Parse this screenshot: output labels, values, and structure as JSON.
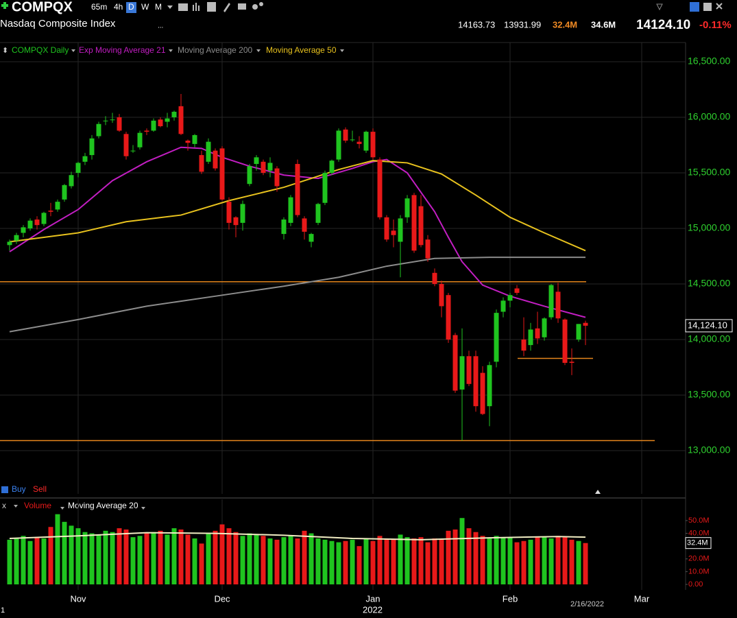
{
  "header": {
    "symbol": "COMPQX",
    "intervals": [
      "65m",
      "4h",
      "D",
      "W",
      "M"
    ],
    "name": "Nasdaq Composite Index",
    "ellipsis": "...",
    "high": "14163.73",
    "low": "13931.99",
    "volume": "32.4M",
    "avg_volume": "34.6M",
    "last": "14124.10",
    "change": "-0.11%"
  },
  "signals": [
    "Buy",
    "Sell"
  ],
  "year_label": "2022",
  "cursor_date": "2/16/2022",
  "corner_label": "1",
  "chart_data": [
    {
      "type": "candlestick",
      "candles": {
        "name": "COMPQX Daily",
        "up_color": "#1fc41f",
        "down_color": "#e81919",
        "open": [
          14850,
          14890,
          14960,
          15000,
          15080,
          15040,
          15160,
          15170,
          15260,
          15380,
          15500,
          15600,
          15660,
          15830,
          15970,
          15980,
          16000,
          15850,
          15700,
          15730,
          15880,
          15880,
          15980,
          15960,
          16000,
          16100,
          15790,
          15760,
          15660,
          15600,
          15700,
          15720,
          15240,
          15100,
          15050,
          15400,
          15580,
          15600,
          15520,
          15540,
          14950,
          15050,
          15580,
          15090,
          14880,
          15050,
          15230,
          15500,
          15620,
          15890,
          15800,
          15780,
          15700,
          15870,
          15620,
          15100,
          14980,
          14880,
          15100,
          15300,
          15200,
          14900,
          14600,
          14500,
          14400,
          14040,
          13550,
          13850,
          13850,
          13700,
          13400,
          13800,
          14250,
          14350,
          14460,
          14000,
          13950,
          14100,
          14020,
          14200,
          14430,
          14180,
          13800,
          14000,
          14150
        ],
        "high": [
          14900,
          14960,
          15030,
          15090,
          15110,
          15150,
          15230,
          15260,
          15400,
          15510,
          15600,
          15680,
          15840,
          15960,
          16010,
          16040,
          16030,
          15870,
          15750,
          15880,
          15900,
          15990,
          16000,
          16040,
          16060,
          16210,
          15800,
          15850,
          15700,
          15810,
          15720,
          15740,
          15280,
          15110,
          15250,
          15580,
          15660,
          15620,
          15640,
          15560,
          15100,
          15300,
          15620,
          15110,
          14960,
          15230,
          15520,
          15620,
          15900,
          15910,
          15880,
          15830,
          15880,
          15900,
          15640,
          15120,
          15080,
          15120,
          15300,
          15320,
          15300,
          14940,
          14640,
          14530,
          14420,
          14060,
          14100,
          13900,
          13900,
          13760,
          13800,
          14270,
          14380,
          14420,
          14490,
          14200,
          14150,
          14250,
          14200,
          14500,
          14510,
          14190,
          13920,
          14140,
          14170
        ],
        "low": [
          14800,
          14860,
          14920,
          14980,
          14990,
          15020,
          15110,
          15150,
          15240,
          15360,
          15460,
          15570,
          15620,
          15810,
          15930,
          15950,
          15870,
          15620,
          15680,
          15710,
          15840,
          15870,
          15910,
          15910,
          15970,
          15840,
          15700,
          15730,
          15490,
          15580,
          15520,
          15250,
          14990,
          14920,
          14980,
          15380,
          15520,
          15480,
          15460,
          15330,
          14900,
          15020,
          15100,
          14900,
          14830,
          15030,
          15210,
          15480,
          15600,
          15770,
          15780,
          15720,
          15680,
          15620,
          15080,
          14880,
          14830,
          14560,
          15050,
          14780,
          14830,
          14700,
          14480,
          14200,
          13970,
          13520,
          13090,
          13580,
          13350,
          13320,
          13220,
          13750,
          14200,
          14290,
          14400,
          13850,
          13900,
          13960,
          13990,
          14180,
          14150,
          13770,
          13680,
          13980,
          13950
        ],
        "close": [
          14880,
          14940,
          15010,
          15070,
          15030,
          15140,
          15150,
          15240,
          15390,
          15480,
          15590,
          15650,
          15810,
          15940,
          15970,
          15980,
          15880,
          15650,
          15700,
          15860,
          15870,
          15970,
          15920,
          15990,
          16050,
          15850,
          15770,
          15840,
          15510,
          15780,
          15540,
          15260,
          15050,
          15030,
          15220,
          15560,
          15640,
          15500,
          15590,
          15380,
          15080,
          15280,
          15120,
          14970,
          14950,
          15220,
          15500,
          15610,
          15880,
          15790,
          15800,
          15760,
          15870,
          15640,
          15100,
          14900,
          14940,
          15090,
          15270,
          14800,
          14850,
          14730,
          14500,
          14300,
          14000,
          13540,
          13850,
          13600,
          13400,
          13330,
          13770,
          14240,
          14350,
          14400,
          14420,
          13900,
          14090,
          14010,
          14190,
          14490,
          14190,
          13790,
          13790,
          14140,
          14124.1
        ]
      },
      "series": [
        {
          "name": "Exp Moving Average 21",
          "color": "#c21ec2",
          "x": [
            0,
            5,
            10,
            15,
            20,
            25,
            28,
            31,
            35,
            40,
            45,
            50,
            53,
            55,
            58,
            62,
            64,
            66,
            69,
            73,
            78,
            84
          ],
          "values": [
            14790,
            14990,
            15170,
            15430,
            15600,
            15730,
            15720,
            15640,
            15560,
            15480,
            15450,
            15540,
            15600,
            15620,
            15500,
            15150,
            14920,
            14700,
            14490,
            14390,
            14300,
            14200
          ]
        },
        {
          "name": "Moving Average 200",
          "color": "#8c8c8c",
          "x": [
            0,
            10,
            20,
            30,
            40,
            48,
            55,
            62,
            70,
            77,
            84
          ],
          "values": [
            14070,
            14180,
            14300,
            14390,
            14480,
            14560,
            14660,
            14730,
            14740,
            14740,
            14740
          ]
        },
        {
          "name": "Moving Average 50",
          "color": "#e8c21e",
          "x": [
            0,
            10,
            17,
            25,
            32,
            40,
            48,
            53,
            58,
            63,
            68,
            73,
            78,
            84
          ],
          "values": [
            14880,
            14960,
            15060,
            15120,
            15250,
            15370,
            15530,
            15610,
            15590,
            15490,
            15300,
            15100,
            14960,
            14800
          ]
        }
      ],
      "levels": [
        14520,
        13090,
        13830
      ],
      "level_color": "#e6861c",
      "last_price": {
        "value": 14124.1,
        "label": "14,124.10"
      },
      "xlim": [
        -1.4,
        98.6
      ],
      "xticks": [
        {
          "value": 10,
          "label": "Nov"
        },
        {
          "value": 31,
          "label": "Dec"
        },
        {
          "value": 53,
          "label": "Jan"
        },
        {
          "value": 73,
          "label": "Feb"
        },
        {
          "value": 92.2,
          "label": "Mar"
        }
      ],
      "ylim": [
        12611,
        16673
      ],
      "yticks": [
        {
          "value": 16500,
          "label": "16,500.00"
        },
        {
          "value": 16000,
          "label": "16,000.00"
        },
        {
          "value": 15500,
          "label": "15,500.00"
        },
        {
          "value": 15000,
          "label": "15,000.00"
        },
        {
          "value": 14500,
          "label": "14,500.00"
        },
        {
          "value": 14000,
          "label": "14,000.00"
        },
        {
          "value": 13500,
          "label": "13,500.00"
        },
        {
          "value": 13000,
          "label": "13,000.00"
        }
      ],
      "grid": true
    },
    {
      "type": "bar",
      "title": "Volume",
      "values": [
        35,
        36,
        38,
        34,
        37,
        36,
        45,
        55,
        49,
        46,
        44,
        41,
        40,
        39,
        42,
        41,
        44,
        43,
        37,
        38,
        40,
        41,
        42,
        39,
        44,
        43,
        39,
        36,
        32,
        40,
        42,
        47,
        44,
        41,
        38,
        40,
        39,
        38,
        36,
        35,
        37,
        38,
        36,
        42,
        40,
        36,
        35,
        34,
        33,
        34,
        35,
        30,
        36,
        34,
        38,
        36,
        35,
        39,
        37,
        36,
        37,
        33,
        36,
        35,
        42,
        43,
        52,
        44,
        41,
        38,
        36,
        38,
        37,
        37,
        33,
        34,
        35,
        37,
        37,
        36,
        38,
        37,
        35,
        34,
        32.4
      ],
      "series": [
        {
          "name": "Moving Average 20",
          "color": "#f2eec4",
          "x": [
            0,
            10,
            20,
            30,
            40,
            50,
            60,
            70,
            80,
            84
          ],
          "values": [
            36,
            38,
            40.5,
            40,
            38.5,
            36,
            35,
            36.5,
            37.5,
            37
          ]
        }
      ],
      "last_value": {
        "value": 32.4,
        "label": "32.4M"
      },
      "ylim": [
        0,
        57.5
      ],
      "yticks": [
        {
          "value": 50,
          "label": "50.0M"
        },
        {
          "value": 40,
          "label": "40.0M"
        },
        {
          "value": 20,
          "label": "20.0M"
        },
        {
          "value": 10,
          "label": "10.0M"
        },
        {
          "value": 0,
          "label": "0.00"
        }
      ]
    }
  ]
}
